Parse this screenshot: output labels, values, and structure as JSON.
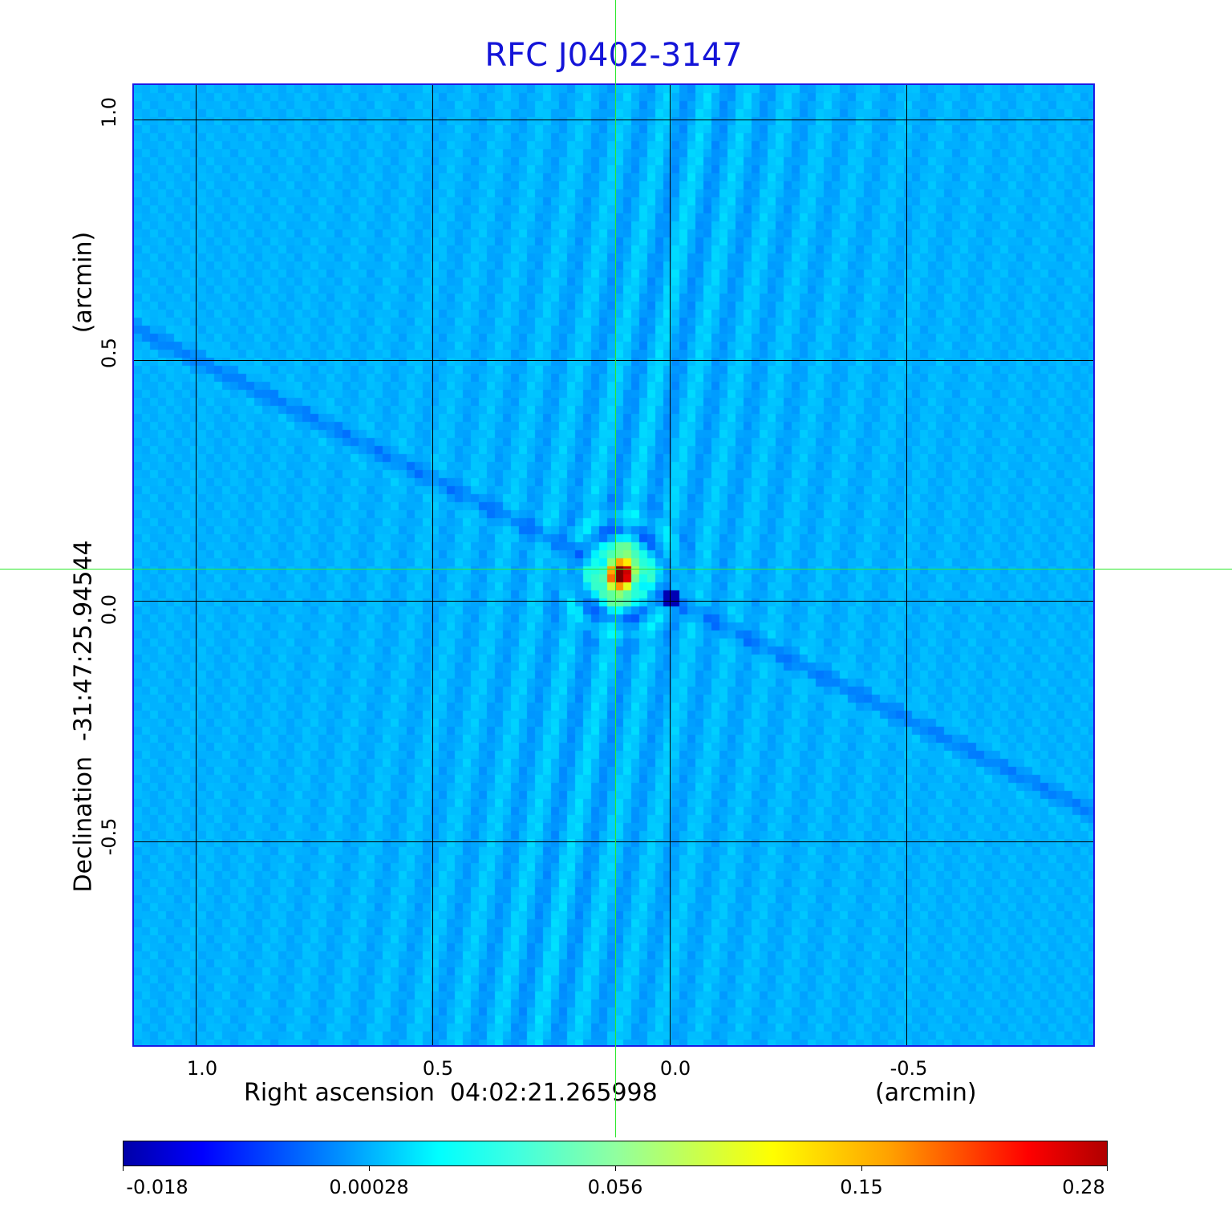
{
  "chart_data": {
    "type": "heatmap",
    "title": "RFC J0402-3147",
    "xlabel": "Right ascension  04:02:21.265998",
    "xunit": "(arcmin)",
    "ylabel": "Declination  -31:47:25.94544",
    "yunit": "(arcmin)",
    "x_ticks": [
      {
        "value": 1.0,
        "label": "1.0"
      },
      {
        "value": 0.5,
        "label": "0.5"
      },
      {
        "value": 0.0,
        "label": "0.0"
      },
      {
        "value": -0.5,
        "label": "-0.5"
      }
    ],
    "y_ticks": [
      {
        "value": 1.0,
        "label": "1.0"
      },
      {
        "value": 0.5,
        "label": "0.5"
      },
      {
        "value": 0.0,
        "label": "0.0"
      },
      {
        "value": -0.5,
        "label": "-0.5"
      }
    ],
    "xlim": [
      1.134,
      -0.897
    ],
    "ylim": [
      -0.925,
      1.075
    ],
    "grid": true,
    "crosshair": {
      "x": 0.115,
      "y": 0.067
    },
    "peak": {
      "x": 0.12,
      "y": 0.07,
      "value": 0.28
    },
    "colorbar": {
      "colormap": "jet",
      "ticks": [
        "-0.018",
        "0.00028",
        "0.056",
        "0.15",
        "0.28"
      ],
      "range": [
        -0.018,
        0.28
      ],
      "placement": "bottom"
    }
  },
  "colors": {
    "title": "#1414d8",
    "frame": "#1a1ae6",
    "crosshair": "#2ee82e",
    "background_level": "#00a2ff"
  }
}
